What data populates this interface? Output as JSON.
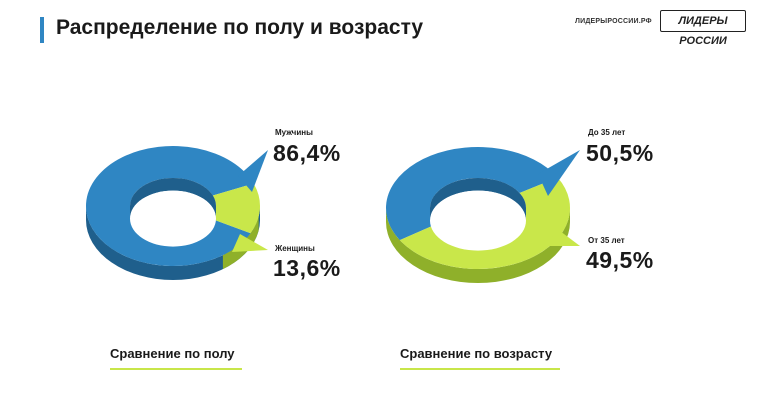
{
  "header": {
    "title": "Распределение по полу и возрасту",
    "site": "ЛИДЕРЫРОССИИ.РФ",
    "brand": "ЛИДЕРЫ РОССИИ"
  },
  "colors": {
    "blue": "#2f86c3",
    "blue_dark": "#1f5f8c",
    "green": "#c9e74a",
    "green_dark": "#8fb02a"
  },
  "chart_data": [
    {
      "type": "pie",
      "title": "Сравнение по полу",
      "slices": [
        {
          "label": "Мужчины",
          "value_label": "86,4%",
          "value": 86.4
        },
        {
          "label": "Женщины",
          "value_label": "13,6%",
          "value": 13.6
        }
      ]
    },
    {
      "type": "pie",
      "title": "Сравнение по возрасту",
      "slices": [
        {
          "label": "До 35 лет",
          "value_label": "50,5%",
          "value": 50.5
        },
        {
          "label": "От 35 лет",
          "value_label": "49,5%",
          "value": 49.5
        }
      ]
    }
  ]
}
